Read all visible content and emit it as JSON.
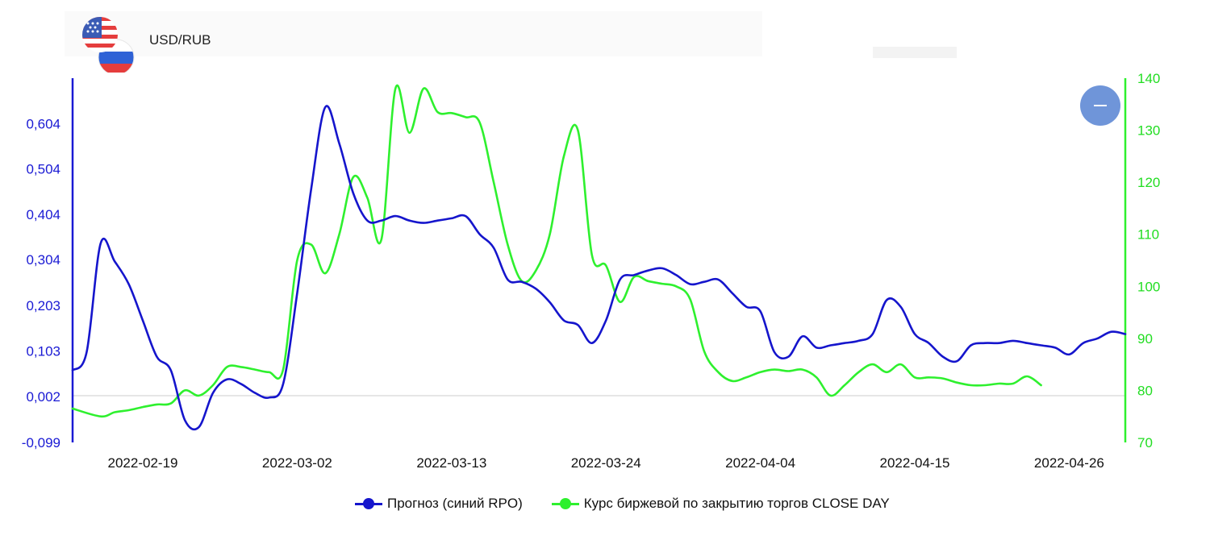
{
  "header": {
    "pair_label": "USD/RUB",
    "flag_icons": [
      "us-flag-icon",
      "ru-flag-icon"
    ]
  },
  "controls": {
    "collapse_icon": "minus-icon"
  },
  "colors": {
    "forecast": "#1515cc",
    "close": "#2ef02e",
    "axis_left": "#1a1ad4",
    "axis_right": "#22dd22",
    "button": "#6f95d9"
  },
  "chart_data": {
    "type": "line",
    "x_ticks": [
      "2022-02-19",
      "2022-03-02",
      "2022-03-13",
      "2022-03-24",
      "2022-04-04",
      "2022-04-15",
      "2022-04-26"
    ],
    "y_left": {
      "ticks": [
        "-0,099",
        "0,002",
        "0,103",
        "0,203",
        "0,304",
        "0,404",
        "0,504",
        "0,604"
      ],
      "range": [
        -0.099,
        0.704
      ]
    },
    "y_right": {
      "ticks": [
        "70",
        "80",
        "90",
        "100",
        "110",
        "120",
        "130",
        "140"
      ],
      "range": [
        70,
        140
      ]
    },
    "x_range": [
      "2022-02-14",
      "2022-04-30"
    ],
    "grid": false,
    "legend_position": "bottom",
    "series": [
      {
        "name": "Прогноз (синий RPO)",
        "axis": "left",
        "points": [
          [
            "2022-02-14",
            0.06
          ],
          [
            "2022-02-15",
            0.1
          ],
          [
            "2022-02-16",
            0.34
          ],
          [
            "2022-02-17",
            0.3
          ],
          [
            "2022-02-18",
            0.25
          ],
          [
            "2022-02-19",
            0.17
          ],
          [
            "2022-02-20",
            0.09
          ],
          [
            "2022-02-21",
            0.06
          ],
          [
            "2022-02-22",
            -0.05
          ],
          [
            "2022-02-23",
            -0.065
          ],
          [
            "2022-02-24",
            0.01
          ],
          [
            "2022-02-25",
            0.04
          ],
          [
            "2022-02-26",
            0.03
          ],
          [
            "2022-02-27",
            0.01
          ],
          [
            "2022-02-28",
            0.0
          ],
          [
            "2022-03-01",
            0.03
          ],
          [
            "2022-03-02",
            0.23
          ],
          [
            "2022-03-03",
            0.46
          ],
          [
            "2022-03-04",
            0.64
          ],
          [
            "2022-03-05",
            0.56
          ],
          [
            "2022-03-06",
            0.45
          ],
          [
            "2022-03-07",
            0.39
          ],
          [
            "2022-03-08",
            0.39
          ],
          [
            "2022-03-09",
            0.4
          ],
          [
            "2022-03-10",
            0.39
          ],
          [
            "2022-03-11",
            0.385
          ],
          [
            "2022-03-12",
            0.39
          ],
          [
            "2022-03-13",
            0.395
          ],
          [
            "2022-03-14",
            0.4
          ],
          [
            "2022-03-15",
            0.36
          ],
          [
            "2022-03-16",
            0.33
          ],
          [
            "2022-03-17",
            0.26
          ],
          [
            "2022-03-18",
            0.255
          ],
          [
            "2022-03-19",
            0.24
          ],
          [
            "2022-03-20",
            0.21
          ],
          [
            "2022-03-21",
            0.17
          ],
          [
            "2022-03-22",
            0.16
          ],
          [
            "2022-03-23",
            0.12
          ],
          [
            "2022-03-24",
            0.17
          ],
          [
            "2022-03-25",
            0.26
          ],
          [
            "2022-03-26",
            0.27
          ],
          [
            "2022-03-27",
            0.28
          ],
          [
            "2022-03-28",
            0.285
          ],
          [
            "2022-03-29",
            0.27
          ],
          [
            "2022-03-30",
            0.25
          ],
          [
            "2022-03-31",
            0.255
          ],
          [
            "2022-04-01",
            0.26
          ],
          [
            "2022-04-02",
            0.23
          ],
          [
            "2022-04-03",
            0.2
          ],
          [
            "2022-04-04",
            0.19
          ],
          [
            "2022-04-05",
            0.1
          ],
          [
            "2022-04-06",
            0.09
          ],
          [
            "2022-04-07",
            0.135
          ],
          [
            "2022-04-08",
            0.11
          ],
          [
            "2022-04-09",
            0.115
          ],
          [
            "2022-04-10",
            0.12
          ],
          [
            "2022-04-11",
            0.125
          ],
          [
            "2022-04-12",
            0.14
          ],
          [
            "2022-04-13",
            0.215
          ],
          [
            "2022-04-14",
            0.2
          ],
          [
            "2022-04-15",
            0.14
          ],
          [
            "2022-04-16",
            0.12
          ],
          [
            "2022-04-17",
            0.09
          ],
          [
            "2022-04-18",
            0.08
          ],
          [
            "2022-04-19",
            0.115
          ],
          [
            "2022-04-20",
            0.12
          ],
          [
            "2022-04-21",
            0.12
          ],
          [
            "2022-04-22",
            0.125
          ],
          [
            "2022-04-23",
            0.12
          ],
          [
            "2022-04-24",
            0.115
          ],
          [
            "2022-04-25",
            0.11
          ],
          [
            "2022-04-26",
            0.095
          ],
          [
            "2022-04-27",
            0.12
          ],
          [
            "2022-04-28",
            0.13
          ],
          [
            "2022-04-29",
            0.145
          ],
          [
            "2022-04-30",
            0.14
          ]
        ]
      },
      {
        "name": "Курс биржевой по закрытию торгов CLOSE DAY",
        "axis": "right",
        "points": [
          [
            "2022-02-14",
            76.5
          ],
          [
            "2022-02-16",
            75
          ],
          [
            "2022-02-17",
            75.8
          ],
          [
            "2022-02-18",
            76.2
          ],
          [
            "2022-02-19",
            76.8
          ],
          [
            "2022-02-20",
            77.3
          ],
          [
            "2022-02-21",
            77.5
          ],
          [
            "2022-02-22",
            80
          ],
          [
            "2022-02-23",
            79
          ],
          [
            "2022-02-24",
            81
          ],
          [
            "2022-02-25",
            84.5
          ],
          [
            "2022-02-26",
            84.5
          ],
          [
            "2022-02-27",
            84
          ],
          [
            "2022-02-28",
            83.5
          ],
          [
            "2022-03-01",
            84
          ],
          [
            "2022-03-02",
            105
          ],
          [
            "2022-03-03",
            108
          ],
          [
            "2022-03-04",
            102.5
          ],
          [
            "2022-03-05",
            110
          ],
          [
            "2022-03-06",
            121
          ],
          [
            "2022-03-07",
            117
          ],
          [
            "2022-03-08",
            109
          ],
          [
            "2022-03-09",
            138
          ],
          [
            "2022-03-10",
            129.5
          ],
          [
            "2022-03-11",
            138
          ],
          [
            "2022-03-12",
            133.5
          ],
          [
            "2022-03-13",
            133.3
          ],
          [
            "2022-03-14",
            132.5
          ],
          [
            "2022-03-15",
            131.5
          ],
          [
            "2022-03-16",
            120
          ],
          [
            "2022-03-17",
            108
          ],
          [
            "2022-03-18",
            101
          ],
          [
            "2022-03-19",
            103
          ],
          [
            "2022-03-20",
            110
          ],
          [
            "2022-03-21",
            125
          ],
          [
            "2022-03-22",
            130
          ],
          [
            "2022-03-23",
            106
          ],
          [
            "2022-03-24",
            104
          ],
          [
            "2022-03-25",
            97
          ],
          [
            "2022-03-26",
            101.8
          ],
          [
            "2022-03-27",
            101
          ],
          [
            "2022-03-28",
            100.5
          ],
          [
            "2022-03-29",
            100
          ],
          [
            "2022-03-30",
            97.5
          ],
          [
            "2022-03-31",
            87.5
          ],
          [
            "2022-04-01",
            83.5
          ],
          [
            "2022-04-02",
            81.8
          ],
          [
            "2022-04-03",
            82.5
          ],
          [
            "2022-04-04",
            83.5
          ],
          [
            "2022-04-05",
            84
          ],
          [
            "2022-04-06",
            83.7
          ],
          [
            "2022-04-07",
            84
          ],
          [
            "2022-04-08",
            82.5
          ],
          [
            "2022-04-09",
            79
          ],
          [
            "2022-04-10",
            81
          ],
          [
            "2022-04-11",
            83.5
          ],
          [
            "2022-04-12",
            85
          ],
          [
            "2022-04-13",
            83.5
          ],
          [
            "2022-04-14",
            85
          ],
          [
            "2022-04-15",
            82.5
          ],
          [
            "2022-04-16",
            82.5
          ],
          [
            "2022-04-17",
            82.3
          ],
          [
            "2022-04-18",
            81.5
          ],
          [
            "2022-04-19",
            81
          ],
          [
            "2022-04-20",
            81
          ],
          [
            "2022-04-21",
            81.3
          ],
          [
            "2022-04-22",
            81.3
          ],
          [
            "2022-04-23",
            82.7
          ],
          [
            "2022-04-24",
            81
          ]
        ]
      }
    ]
  }
}
